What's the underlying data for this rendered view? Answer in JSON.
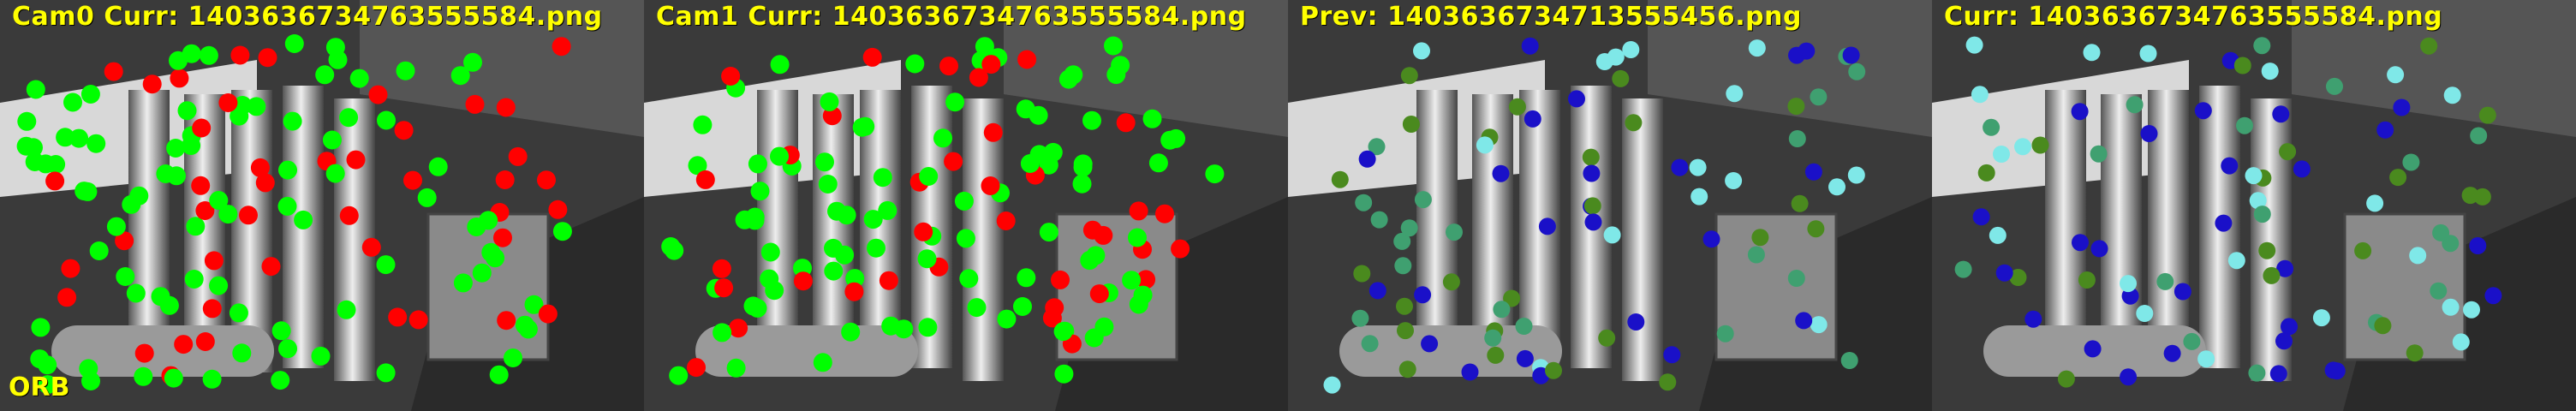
{
  "panels": [
    {
      "label": "Cam0 Curr: 1403636734763555584.png",
      "kind": "curr"
    },
    {
      "label": "Cam1 Curr: 1403636734763555584.png",
      "kind": "curr"
    },
    {
      "label": "Prev: 1403636734713555456.png",
      "kind": "track"
    },
    {
      "label": "Curr: 1403636734763555584.png",
      "kind": "track"
    }
  ],
  "method": "ORB",
  "colors": {
    "matched": "#00ff00",
    "unmatched": "#ff0000",
    "track_blue": "#1a10c8",
    "track_green": "#4a8a1e",
    "track_cyan": "#7fe8e8",
    "track_teal": "#3fa070",
    "label": "#ffff00"
  }
}
